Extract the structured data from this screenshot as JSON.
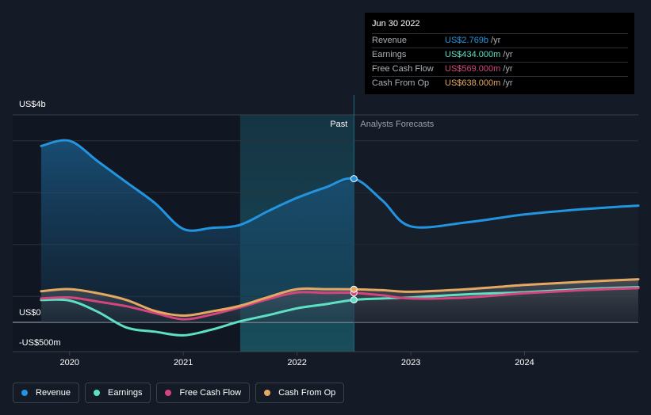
{
  "chart_data": {
    "type": "line",
    "y_ticks": [
      {
        "value": 4000,
        "label": "US$4b"
      },
      {
        "value": 0,
        "label": "US$0"
      },
      {
        "value": -500,
        "label": "-US$500m"
      }
    ],
    "ylim": [
      -500,
      4000
    ],
    "xlim": [
      2019.5,
      2025.0
    ],
    "x_ticks": [
      {
        "value": 2020,
        "label": "2020"
      },
      {
        "value": 2021,
        "label": "2021"
      },
      {
        "value": 2022,
        "label": "2022"
      },
      {
        "value": 2023,
        "label": "2023"
      },
      {
        "value": 2024,
        "label": "2024"
      }
    ],
    "past_label": "Past",
    "forecast_label": "Analysts Forecasts",
    "past_end_x": 2022.5,
    "highlight_start_x": 2021.5,
    "series": [
      {
        "name": "Revenue",
        "color": "#2394df",
        "points": [
          [
            2019.75,
            3400
          ],
          [
            2020.0,
            3500
          ],
          [
            2020.25,
            3100
          ],
          [
            2020.5,
            2700
          ],
          [
            2020.75,
            2300
          ],
          [
            2021.0,
            1800
          ],
          [
            2021.25,
            1820
          ],
          [
            2021.5,
            1880
          ],
          [
            2021.75,
            2150
          ],
          [
            2022.0,
            2400
          ],
          [
            2022.25,
            2600
          ],
          [
            2022.5,
            2769
          ],
          [
            2022.75,
            2350
          ],
          [
            2023.0,
            1850
          ],
          [
            2023.5,
            1930
          ],
          [
            2024.0,
            2080
          ],
          [
            2024.5,
            2180
          ],
          [
            2025.0,
            2250
          ]
        ],
        "forecast_from": 2022.5
      },
      {
        "name": "Earnings",
        "color": "#5de0c4",
        "points": [
          [
            2019.75,
            430
          ],
          [
            2020.0,
            420
          ],
          [
            2020.25,
            200
          ],
          [
            2020.5,
            -100
          ],
          [
            2020.75,
            -180
          ],
          [
            2021.0,
            -250
          ],
          [
            2021.25,
            -140
          ],
          [
            2021.5,
            20
          ],
          [
            2021.75,
            140
          ],
          [
            2022.0,
            270
          ],
          [
            2022.25,
            350
          ],
          [
            2022.5,
            434
          ],
          [
            2022.75,
            460
          ],
          [
            2023.0,
            480
          ],
          [
            2023.5,
            540
          ],
          [
            2024.0,
            580
          ],
          [
            2024.5,
            640
          ],
          [
            2025.0,
            680
          ]
        ],
        "forecast_from": 2022.5
      },
      {
        "name": "Free Cash Flow",
        "color": "#d3467d",
        "points": [
          [
            2019.75,
            460
          ],
          [
            2020.0,
            480
          ],
          [
            2020.25,
            400
          ],
          [
            2020.5,
            310
          ],
          [
            2020.75,
            180
          ],
          [
            2021.0,
            60
          ],
          [
            2021.25,
            150
          ],
          [
            2021.5,
            290
          ],
          [
            2021.75,
            450
          ],
          [
            2022.0,
            575
          ],
          [
            2022.25,
            570
          ],
          [
            2022.5,
            569
          ],
          [
            2022.75,
            520
          ],
          [
            2023.0,
            460
          ],
          [
            2023.5,
            480
          ],
          [
            2024.0,
            560
          ],
          [
            2024.5,
            620
          ],
          [
            2025.0,
            660
          ]
        ],
        "forecast_from": 2022.5
      },
      {
        "name": "Cash From Op",
        "color": "#e3a862",
        "points": [
          [
            2019.75,
            600
          ],
          [
            2020.0,
            640
          ],
          [
            2020.25,
            560
          ],
          [
            2020.5,
            430
          ],
          [
            2020.75,
            220
          ],
          [
            2021.0,
            130
          ],
          [
            2021.25,
            210
          ],
          [
            2021.5,
            320
          ],
          [
            2021.75,
            490
          ],
          [
            2022.0,
            640
          ],
          [
            2022.25,
            640
          ],
          [
            2022.5,
            638
          ],
          [
            2022.75,
            620
          ],
          [
            2023.0,
            590
          ],
          [
            2023.5,
            640
          ],
          [
            2024.0,
            720
          ],
          [
            2024.5,
            780
          ],
          [
            2025.0,
            830
          ]
        ],
        "forecast_from": 2022.5
      }
    ]
  },
  "tooltip": {
    "date": "Jun 30 2022",
    "rows": [
      {
        "name": "Revenue",
        "value": "US$2.769b",
        "unit": "/yr",
        "color": "#2394df"
      },
      {
        "name": "Earnings",
        "value": "US$434.000m",
        "unit": "/yr",
        "color": "#5de0c4"
      },
      {
        "name": "Free Cash Flow",
        "value": "US$569.000m",
        "unit": "/yr",
        "color": "#d3467d"
      },
      {
        "name": "Cash From Op",
        "value": "US$638.000m",
        "unit": "/yr",
        "color": "#e3a862"
      }
    ]
  },
  "legend": [
    {
      "label": "Revenue",
      "color": "#2394df"
    },
    {
      "label": "Earnings",
      "color": "#5de0c4"
    },
    {
      "label": "Free Cash Flow",
      "color": "#d3467d"
    },
    {
      "label": "Cash From Op",
      "color": "#e3a862"
    }
  ]
}
